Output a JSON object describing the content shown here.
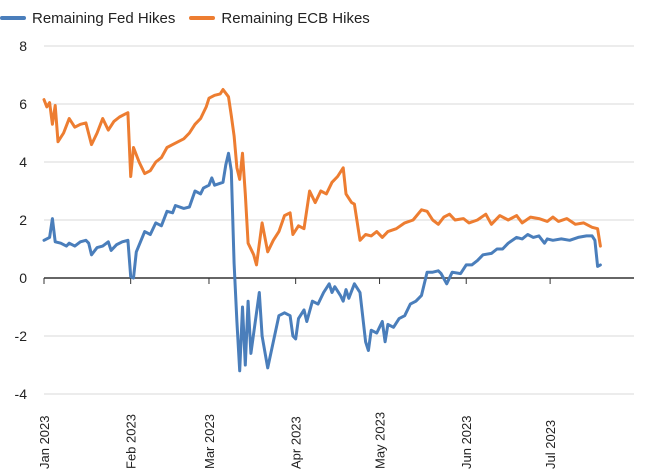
{
  "chart_data": {
    "type": "line",
    "title": "",
    "xlabel": "",
    "ylabel": "",
    "ylim": [
      -4,
      8
    ],
    "yticks": [
      "8",
      "6",
      "4",
      "2",
      "0",
      "-2",
      "-4"
    ],
    "grid": true,
    "legend_position": "top-left",
    "xrange": [
      "2023-01-01",
      "2023-07-31"
    ],
    "xticks": [
      {
        "date": "2023-01-01",
        "label": "Jan 2023"
      },
      {
        "date": "2023-02-01",
        "label": "Feb 2023"
      },
      {
        "date": "2023-03-01",
        "label": "Mar 2023"
      },
      {
        "date": "2023-04-01",
        "label": "Apr 2023"
      },
      {
        "date": "2023-05-01",
        "label": "May 2023"
      },
      {
        "date": "2023-06-01",
        "label": "Jun 2023"
      },
      {
        "date": "2023-07-01",
        "label": "Jul 2023"
      }
    ],
    "series": [
      {
        "name": "Remaining Fed Hikes",
        "color": "#4a7ebb",
        "points": [
          [
            "2023-01-01",
            1.3
          ],
          [
            "2023-01-03",
            1.4
          ],
          [
            "2023-01-04",
            2.05
          ],
          [
            "2023-01-05",
            1.25
          ],
          [
            "2023-01-07",
            1.2
          ],
          [
            "2023-01-09",
            1.1
          ],
          [
            "2023-01-10",
            1.2
          ],
          [
            "2023-01-12",
            1.1
          ],
          [
            "2023-01-14",
            1.25
          ],
          [
            "2023-01-16",
            1.3
          ],
          [
            "2023-01-17",
            1.2
          ],
          [
            "2023-01-18",
            0.8
          ],
          [
            "2023-01-20",
            1.05
          ],
          [
            "2023-01-22",
            1.1
          ],
          [
            "2023-01-24",
            1.25
          ],
          [
            "2023-01-25",
            0.95
          ],
          [
            "2023-01-27",
            1.15
          ],
          [
            "2023-01-29",
            1.25
          ],
          [
            "2023-01-31",
            1.3
          ],
          [
            "2023-02-01",
            0.05
          ],
          [
            "2023-02-02",
            0.0
          ],
          [
            "2023-02-03",
            0.9
          ],
          [
            "2023-02-06",
            1.6
          ],
          [
            "2023-02-08",
            1.5
          ],
          [
            "2023-02-10",
            1.9
          ],
          [
            "2023-02-12",
            1.8
          ],
          [
            "2023-02-14",
            2.3
          ],
          [
            "2023-02-16",
            2.25
          ],
          [
            "2023-02-17",
            2.5
          ],
          [
            "2023-02-20",
            2.4
          ],
          [
            "2023-02-22",
            2.45
          ],
          [
            "2023-02-24",
            3.0
          ],
          [
            "2023-02-26",
            2.9
          ],
          [
            "2023-02-27",
            3.1
          ],
          [
            "2023-03-01",
            3.2
          ],
          [
            "2023-03-02",
            3.45
          ],
          [
            "2023-03-03",
            3.2
          ],
          [
            "2023-03-06",
            3.3
          ],
          [
            "2023-03-07",
            3.9
          ],
          [
            "2023-03-08",
            4.3
          ],
          [
            "2023-03-09",
            3.7
          ],
          [
            "2023-03-10",
            0.5
          ],
          [
            "2023-03-11",
            -1.5
          ],
          [
            "2023-03-12",
            -3.2
          ],
          [
            "2023-03-13",
            -1.0
          ],
          [
            "2023-03-14",
            -3.0
          ],
          [
            "2023-03-15",
            -0.8
          ],
          [
            "2023-03-16",
            -2.6
          ],
          [
            "2023-03-17",
            -1.9
          ],
          [
            "2023-03-18",
            -1.2
          ],
          [
            "2023-03-19",
            -0.5
          ],
          [
            "2023-03-20",
            -2.0
          ],
          [
            "2023-03-22",
            -3.1
          ],
          [
            "2023-03-24",
            -2.2
          ],
          [
            "2023-03-26",
            -1.3
          ],
          [
            "2023-03-28",
            -1.2
          ],
          [
            "2023-03-30",
            -1.3
          ],
          [
            "2023-03-31",
            -2.0
          ],
          [
            "2023-04-01",
            -2.1
          ],
          [
            "2023-04-02",
            -1.4
          ],
          [
            "2023-04-04",
            -1.1
          ],
          [
            "2023-04-05",
            -1.5
          ],
          [
            "2023-04-07",
            -0.8
          ],
          [
            "2023-04-09",
            -0.9
          ],
          [
            "2023-04-11",
            -0.5
          ],
          [
            "2023-04-13",
            -0.2
          ],
          [
            "2023-04-14",
            -0.5
          ],
          [
            "2023-04-15",
            -0.3
          ],
          [
            "2023-04-17",
            -0.6
          ],
          [
            "2023-04-18",
            -0.8
          ],
          [
            "2023-04-19",
            -0.4
          ],
          [
            "2023-04-20",
            -0.7
          ],
          [
            "2023-04-22",
            -0.2
          ],
          [
            "2023-04-24",
            -0.5
          ],
          [
            "2023-04-26",
            -2.2
          ],
          [
            "2023-04-27",
            -2.5
          ],
          [
            "2023-04-28",
            -1.8
          ],
          [
            "2023-04-30",
            -1.9
          ],
          [
            "2023-05-01",
            -1.7
          ],
          [
            "2023-05-02",
            -1.5
          ],
          [
            "2023-05-03",
            -2.2
          ],
          [
            "2023-05-04",
            -1.6
          ],
          [
            "2023-05-06",
            -1.7
          ],
          [
            "2023-05-08",
            -1.4
          ],
          [
            "2023-05-10",
            -1.3
          ],
          [
            "2023-05-12",
            -0.9
          ],
          [
            "2023-05-14",
            -0.8
          ],
          [
            "2023-05-16",
            -0.6
          ],
          [
            "2023-05-18",
            0.2
          ],
          [
            "2023-05-20",
            0.2
          ],
          [
            "2023-05-22",
            0.25
          ],
          [
            "2023-05-23",
            0.15
          ],
          [
            "2023-05-25",
            -0.2
          ],
          [
            "2023-05-27",
            0.2
          ],
          [
            "2023-05-30",
            0.15
          ],
          [
            "2023-06-01",
            0.45
          ],
          [
            "2023-06-03",
            0.45
          ],
          [
            "2023-06-05",
            0.6
          ],
          [
            "2023-06-07",
            0.8
          ],
          [
            "2023-06-10",
            0.85
          ],
          [
            "2023-06-12",
            1.0
          ],
          [
            "2023-06-14",
            1.0
          ],
          [
            "2023-06-16",
            1.2
          ],
          [
            "2023-06-19",
            1.4
          ],
          [
            "2023-06-21",
            1.35
          ],
          [
            "2023-06-23",
            1.5
          ],
          [
            "2023-06-25",
            1.4
          ],
          [
            "2023-06-27",
            1.45
          ],
          [
            "2023-06-29",
            1.2
          ],
          [
            "2023-06-30",
            1.35
          ],
          [
            "2023-07-02",
            1.3
          ],
          [
            "2023-07-05",
            1.35
          ],
          [
            "2023-07-08",
            1.3
          ],
          [
            "2023-07-11",
            1.4
          ],
          [
            "2023-07-14",
            1.45
          ],
          [
            "2023-07-16",
            1.45
          ],
          [
            "2023-07-17",
            1.3
          ],
          [
            "2023-07-18",
            0.4
          ],
          [
            "2023-07-19",
            0.45
          ]
        ]
      },
      {
        "name": "Remaining ECB Hikes",
        "color": "#ed7d31",
        "points": [
          [
            "2023-01-01",
            6.15
          ],
          [
            "2023-01-02",
            5.9
          ],
          [
            "2023-01-03",
            6.05
          ],
          [
            "2023-01-04",
            5.3
          ],
          [
            "2023-01-05",
            5.95
          ],
          [
            "2023-01-06",
            4.7
          ],
          [
            "2023-01-08",
            5.0
          ],
          [
            "2023-01-10",
            5.5
          ],
          [
            "2023-01-12",
            5.2
          ],
          [
            "2023-01-14",
            5.3
          ],
          [
            "2023-01-16",
            5.35
          ],
          [
            "2023-01-18",
            4.6
          ],
          [
            "2023-01-20",
            5.0
          ],
          [
            "2023-01-22",
            5.5
          ],
          [
            "2023-01-24",
            5.1
          ],
          [
            "2023-01-26",
            5.4
          ],
          [
            "2023-01-28",
            5.55
          ],
          [
            "2023-01-30",
            5.65
          ],
          [
            "2023-01-31",
            5.7
          ],
          [
            "2023-02-01",
            3.5
          ],
          [
            "2023-02-02",
            4.5
          ],
          [
            "2023-02-04",
            4.0
          ],
          [
            "2023-02-06",
            3.6
          ],
          [
            "2023-02-08",
            3.7
          ],
          [
            "2023-02-10",
            4.0
          ],
          [
            "2023-02-12",
            4.15
          ],
          [
            "2023-02-14",
            4.5
          ],
          [
            "2023-02-16",
            4.6
          ],
          [
            "2023-02-18",
            4.7
          ],
          [
            "2023-02-20",
            4.8
          ],
          [
            "2023-02-22",
            5.0
          ],
          [
            "2023-02-24",
            5.3
          ],
          [
            "2023-02-26",
            5.5
          ],
          [
            "2023-02-28",
            5.9
          ],
          [
            "2023-03-01",
            6.2
          ],
          [
            "2023-03-03",
            6.3
          ],
          [
            "2023-03-05",
            6.35
          ],
          [
            "2023-03-06",
            6.5
          ],
          [
            "2023-03-08",
            6.25
          ],
          [
            "2023-03-09",
            5.6
          ],
          [
            "2023-03-10",
            4.9
          ],
          [
            "2023-03-11",
            3.8
          ],
          [
            "2023-03-12",
            3.4
          ],
          [
            "2023-03-13",
            4.3
          ],
          [
            "2023-03-14",
            2.9
          ],
          [
            "2023-03-15",
            1.2
          ],
          [
            "2023-03-17",
            0.8
          ],
          [
            "2023-03-18",
            0.45
          ],
          [
            "2023-03-20",
            1.9
          ],
          [
            "2023-03-22",
            0.9
          ],
          [
            "2023-03-24",
            1.3
          ],
          [
            "2023-03-26",
            1.6
          ],
          [
            "2023-03-28",
            2.15
          ],
          [
            "2023-03-30",
            2.25
          ],
          [
            "2023-03-31",
            1.5
          ],
          [
            "2023-04-02",
            1.8
          ],
          [
            "2023-04-04",
            1.7
          ],
          [
            "2023-04-06",
            3.0
          ],
          [
            "2023-04-08",
            2.6
          ],
          [
            "2023-04-10",
            3.0
          ],
          [
            "2023-04-12",
            2.9
          ],
          [
            "2023-04-14",
            3.3
          ],
          [
            "2023-04-16",
            3.5
          ],
          [
            "2023-04-18",
            3.8
          ],
          [
            "2023-04-19",
            2.9
          ],
          [
            "2023-04-21",
            2.6
          ],
          [
            "2023-04-22",
            2.55
          ],
          [
            "2023-04-24",
            1.3
          ],
          [
            "2023-04-26",
            1.5
          ],
          [
            "2023-04-28",
            1.45
          ],
          [
            "2023-04-30",
            1.6
          ],
          [
            "2023-05-02",
            1.4
          ],
          [
            "2023-05-04",
            1.6
          ],
          [
            "2023-05-07",
            1.7
          ],
          [
            "2023-05-10",
            1.9
          ],
          [
            "2023-05-13",
            2.0
          ],
          [
            "2023-05-16",
            2.35
          ],
          [
            "2023-05-18",
            2.3
          ],
          [
            "2023-05-20",
            2.0
          ],
          [
            "2023-05-22",
            1.85
          ],
          [
            "2023-05-24",
            2.1
          ],
          [
            "2023-05-26",
            2.2
          ],
          [
            "2023-05-28",
            2.0
          ],
          [
            "2023-05-31",
            2.05
          ],
          [
            "2023-06-02",
            1.9
          ],
          [
            "2023-06-05",
            2.0
          ],
          [
            "2023-06-08",
            2.2
          ],
          [
            "2023-06-10",
            1.85
          ],
          [
            "2023-06-13",
            2.15
          ],
          [
            "2023-06-16",
            2.0
          ],
          [
            "2023-06-19",
            2.15
          ],
          [
            "2023-06-21",
            1.9
          ],
          [
            "2023-06-24",
            2.1
          ],
          [
            "2023-06-27",
            2.05
          ],
          [
            "2023-06-30",
            1.95
          ],
          [
            "2023-07-02",
            2.1
          ],
          [
            "2023-07-04",
            1.95
          ],
          [
            "2023-07-07",
            2.05
          ],
          [
            "2023-07-10",
            1.85
          ],
          [
            "2023-07-13",
            1.9
          ],
          [
            "2023-07-16",
            1.75
          ],
          [
            "2023-07-18",
            1.7
          ],
          [
            "2023-07-19",
            1.1
          ]
        ]
      }
    ]
  }
}
